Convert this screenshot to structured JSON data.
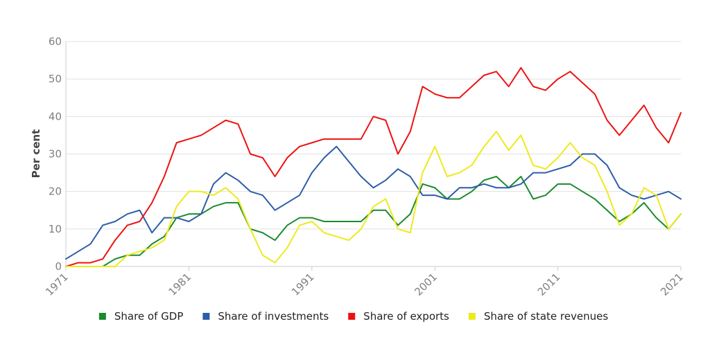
{
  "chart_data": {
    "type": "line",
    "title": "",
    "xlabel": "",
    "ylabel": "Per cent",
    "xlim": [
      1971,
      2021
    ],
    "ylim": [
      0,
      60
    ],
    "yticks": [
      0,
      10,
      20,
      30,
      40,
      50,
      60
    ],
    "xtick_labels": [
      "1971",
      "1981",
      "1991",
      "2001",
      "2011",
      "2021"
    ],
    "grid": "horizontal",
    "legend_position": "bottom",
    "x": [
      1971,
      1972,
      1973,
      1974,
      1975,
      1976,
      1977,
      1978,
      1979,
      1980,
      1981,
      1982,
      1983,
      1984,
      1985,
      1986,
      1987,
      1988,
      1989,
      1990,
      1991,
      1992,
      1993,
      1994,
      1995,
      1996,
      1997,
      1998,
      1999,
      2000,
      2001,
      2002,
      2003,
      2004,
      2005,
      2006,
      2007,
      2008,
      2009,
      2010,
      2011,
      2012,
      2013,
      2014,
      2015,
      2016,
      2017,
      2018,
      2019,
      2020,
      2021
    ],
    "series": [
      {
        "name": "Share of GDP",
        "color": "#1a8a2e",
        "values": [
          0,
          0,
          0,
          0,
          2,
          3,
          3,
          6,
          8,
          13,
          14,
          14,
          16,
          17,
          17,
          10,
          9,
          7,
          11,
          13,
          13,
          12,
          12,
          12,
          12,
          15,
          15,
          11,
          14,
          22,
          21,
          18,
          18,
          20,
          23,
          24,
          21,
          24,
          18,
          19,
          22,
          22,
          20,
          18,
          15,
          12,
          14,
          17,
          13,
          10,
          14
        ]
      },
      {
        "name": "Share of investments",
        "color": "#2b5da8",
        "values": [
          2,
          4,
          6,
          11,
          12,
          14,
          15,
          9,
          13,
          13,
          12,
          14,
          22,
          25,
          23,
          20,
          19,
          15,
          17,
          19,
          25,
          29,
          32,
          28,
          24,
          21,
          23,
          26,
          24,
          19,
          19,
          18,
          21,
          21,
          22,
          21,
          21,
          22,
          25,
          25,
          26,
          27,
          30,
          30,
          27,
          21,
          19,
          18,
          19,
          20,
          18
        ]
      },
      {
        "name": "Share of exports",
        "color": "#ee1111",
        "values": [
          0,
          1,
          1,
          2,
          7,
          11,
          12,
          17,
          24,
          33,
          34,
          35,
          37,
          39,
          38,
          30,
          29,
          24,
          29,
          32,
          33,
          34,
          34,
          34,
          34,
          40,
          39,
          30,
          36,
          48,
          46,
          45,
          45,
          48,
          51,
          52,
          48,
          53,
          48,
          47,
          50,
          52,
          49,
          46,
          39,
          35,
          39,
          43,
          37,
          33,
          41
        ]
      },
      {
        "name": "Share of state revenues",
        "color": "#eeea1a",
        "values": [
          0,
          0,
          0,
          0,
          0,
          3,
          4,
          5,
          7,
          16,
          20,
          20,
          19,
          21,
          18,
          10,
          3,
          1,
          5,
          11,
          12,
          9,
          8,
          7,
          10,
          16,
          18,
          10,
          9,
          25,
          32,
          24,
          25,
          27,
          32,
          36,
          31,
          35,
          27,
          26,
          29,
          33,
          29,
          27,
          20,
          11,
          14,
          21,
          19,
          10,
          14
        ]
      }
    ]
  }
}
